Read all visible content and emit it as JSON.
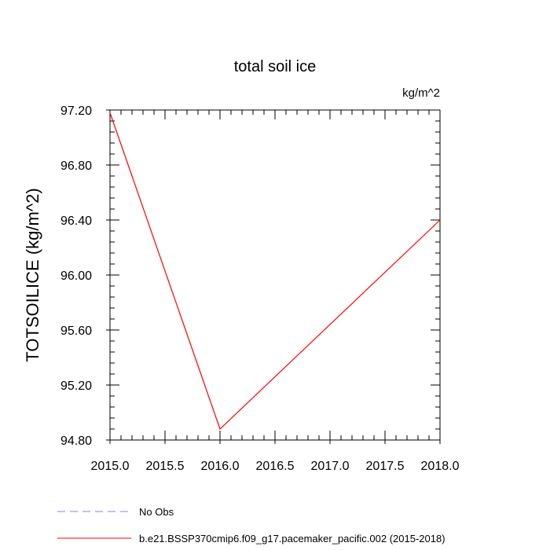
{
  "chart_data": {
    "type": "line",
    "title": "total soil ice",
    "units": "kg/m^2",
    "ylabel": "TOTSOILICE  (kg/m^2)",
    "xlabel": "",
    "xlim": [
      2015.0,
      2018.0
    ],
    "ylim": [
      94.8,
      97.2
    ],
    "x_ticks": [
      "2015.0",
      "2015.5",
      "2016.0",
      "2016.5",
      "2017.0",
      "2017.5",
      "2018.0"
    ],
    "y_ticks": [
      "94.80",
      "95.20",
      "95.60",
      "96.00",
      "96.40",
      "96.80",
      "97.20"
    ],
    "grid": false,
    "legend_position": "bottom-left",
    "series": [
      {
        "name": "No Obs",
        "color": "#8080ff",
        "dash": "dashed",
        "x": [],
        "y": []
      },
      {
        "name": "b.e21.BSSP370cmip6.f09_g17.pacemaker_pacific.002 (2015-2018)",
        "color": "#ff0000",
        "dash": "solid",
        "x": [
          2015,
          2016,
          2018
        ],
        "y": [
          97.18,
          94.88,
          96.4
        ]
      }
    ]
  }
}
